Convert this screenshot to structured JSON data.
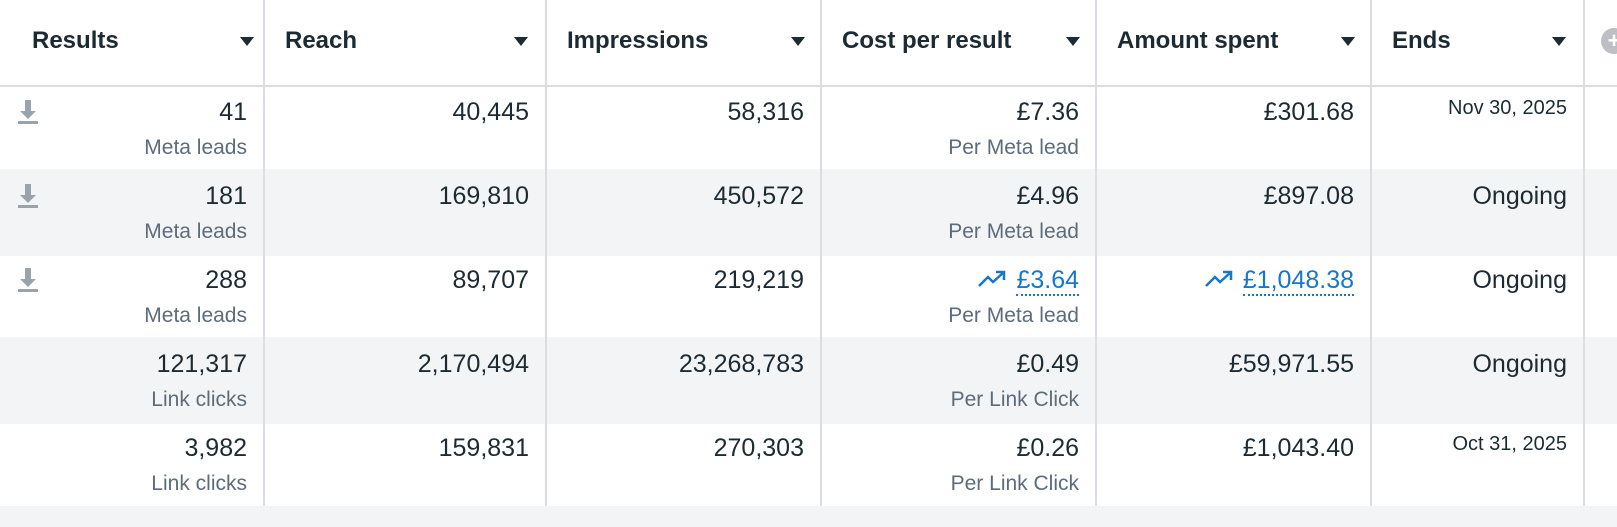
{
  "columns": [
    {
      "key": "results",
      "label": "Results"
    },
    {
      "key": "reach",
      "label": "Reach"
    },
    {
      "key": "impressions",
      "label": "Impressions"
    },
    {
      "key": "cost_per_result",
      "label": "Cost per result"
    },
    {
      "key": "amount_spent",
      "label": "Amount spent"
    },
    {
      "key": "ends",
      "label": "Ends"
    }
  ],
  "rows": [
    {
      "has_download_icon": true,
      "results": "41",
      "results_type": "Meta leads",
      "reach": "40,445",
      "impressions": "58,316",
      "cost_per_result": "£7.36",
      "cost_type": "Per Meta lead",
      "amount_spent": "£301.68",
      "ends": "Nov 30, 2025"
    },
    {
      "has_download_icon": true,
      "results": "181",
      "results_type": "Meta leads",
      "reach": "169,810",
      "impressions": "450,572",
      "cost_per_result": "£4.96",
      "cost_type": "Per Meta lead",
      "amount_spent": "£897.08",
      "ends": "Ongoing"
    },
    {
      "has_download_icon": true,
      "results": "288",
      "results_type": "Meta leads",
      "reach": "89,707",
      "impressions": "219,219",
      "cost_per_result": "£3.64",
      "cost_type": "Per Meta lead",
      "amount_spent": "£1,048.38",
      "ends": "Ongoing",
      "trend_links": true
    },
    {
      "has_download_icon": false,
      "results": "121,317",
      "results_type": "Link clicks",
      "reach": "2,170,494",
      "impressions": "23,268,783",
      "cost_per_result": "£0.49",
      "cost_type": "Per Link Click",
      "amount_spent": "£59,971.55",
      "ends": "Ongoing"
    },
    {
      "has_download_icon": false,
      "results": "3,982",
      "results_type": "Link clicks",
      "reach": "159,831",
      "impressions": "270,303",
      "cost_per_result": "£0.26",
      "cost_type": "Per Link Click",
      "amount_spent": "£1,043.40",
      "ends": "Oct 31, 2025"
    }
  ],
  "icons": {
    "column_menu": "caret-down-icon",
    "download": "download-icon",
    "trend": "trending-up-icon",
    "add_column": "plus-circle-icon"
  },
  "colors": {
    "link": "#1877c9",
    "alt_row": "#f2f4f6",
    "border": "#dadde1",
    "text": "#1c2b33",
    "muted": "#5d6c7b"
  }
}
